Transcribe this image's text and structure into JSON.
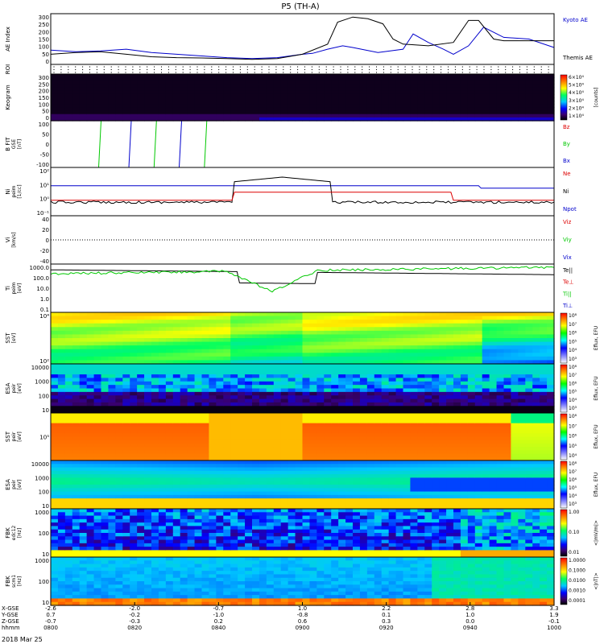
{
  "title": "P5 (TH-A)",
  "date_label": "2018 Mar 25",
  "colors": {
    "black": "#000000",
    "blue": "#0000cc",
    "red": "#dd0000",
    "green": "#00c800"
  },
  "chart_data": [
    {
      "id": "ae",
      "type": "line",
      "ylabel": "AE Index",
      "yticks": [
        "300",
        "250",
        "200",
        "150",
        "100",
        "50",
        "0"
      ],
      "ylim": [
        0,
        300
      ],
      "legend": [
        "Kyoto AE",
        "Themis AE"
      ],
      "legend_colors": [
        "#0000cc",
        "#000000"
      ],
      "series": [
        {
          "name": "Kyoto AE",
          "color": "#0000cc",
          "x": [
            0,
            5,
            10,
            15,
            20,
            25,
            30,
            35,
            40,
            45,
            50,
            52,
            55,
            58,
            60,
            65,
            70,
            72,
            75,
            78,
            80,
            83,
            86,
            90,
            95,
            100
          ],
          "y": [
            85,
            75,
            80,
            90,
            70,
            60,
            50,
            40,
            35,
            40,
            60,
            65,
            90,
            110,
            100,
            70,
            90,
            180,
            130,
            90,
            60,
            110,
            220,
            160,
            150,
            100
          ]
        },
        {
          "name": "Themis AE",
          "color": "#000000",
          "x": [
            0,
            5,
            10,
            15,
            20,
            25,
            30,
            35,
            40,
            45,
            50,
            55,
            57,
            60,
            63,
            66,
            68,
            70,
            75,
            80,
            83,
            85,
            88,
            90,
            95,
            100
          ],
          "y": [
            60,
            70,
            75,
            60,
            45,
            40,
            38,
            35,
            30,
            35,
            60,
            120,
            250,
            280,
            270,
            240,
            150,
            120,
            110,
            130,
            260,
            260,
            150,
            140,
            140,
            140
          ]
        }
      ]
    },
    {
      "id": "roi",
      "type": "dots",
      "ylabel": "ROI",
      "yticks": []
    },
    {
      "id": "keogram",
      "type": "heatmap",
      "ylabel": "Keogram",
      "yticks": [
        "300",
        "250",
        "200",
        "150",
        "100",
        "50",
        "0"
      ],
      "colorbar": [
        "6×10⁴",
        "5×10⁴",
        "4×10⁴",
        "3×10⁴",
        "2×10⁴",
        "1×10⁴"
      ],
      "colorbar_label": "[counts]"
    },
    {
      "id": "bfit",
      "type": "line",
      "ylabel": "B FIT",
      "ylabel2": "GSE",
      "ylabel3": "[nT]",
      "yticks": [
        "100",
        "50",
        "0",
        "-50",
        "-100"
      ],
      "legend": [
        "Bz",
        "By",
        "Bx"
      ],
      "legend_colors": [
        "#dd0000",
        "#00c800",
        "#0000cc"
      ]
    },
    {
      "id": "ni",
      "type": "line",
      "ylabel": "Ni",
      "ylabel2": "peim",
      "ylabel3": "[1/cc]",
      "yticks": [
        "10²",
        "10¹",
        "10⁰",
        "10⁻¹"
      ],
      "legend": [
        "Ne",
        "Ni",
        "Npot"
      ],
      "legend_colors": [
        "#dd0000",
        "#000000",
        "#0000cc"
      ]
    },
    {
      "id": "vi",
      "type": "line",
      "ylabel": "Vi",
      "ylabel2": "[km/s]",
      "yticks": [
        "40",
        "20",
        "0",
        "-20",
        "-40"
      ],
      "legend": [
        "Viz",
        "Viy",
        "Vix"
      ],
      "legend_colors": [
        "#dd0000",
        "#00c800",
        "#0000cc"
      ]
    },
    {
      "id": "ti",
      "type": "line",
      "ylabel": "Ti",
      "ylabel2": "peim",
      "ylabel3": "[eV]",
      "yticks": [
        "1000.0",
        "100.0",
        "10.0",
        "1.0",
        "0.1"
      ],
      "legend": [
        "Te||",
        "Te⊥",
        "Ti||",
        "Ti⊥"
      ],
      "legend_colors": [
        "#000000",
        "#dd0000",
        "#00c800",
        "#0000cc"
      ]
    },
    {
      "id": "sst-e",
      "type": "heatmap",
      "ylabel": "SST",
      "ylabel2": "[eV]",
      "yticks": [
        "10⁴",
        " 10²"
      ],
      "colorbar": [
        "10⁸",
        "10⁷",
        "10⁶",
        "10⁵",
        "10⁴",
        "10³"
      ],
      "colorbar_label": "Eflux, EFU"
    },
    {
      "id": "esa-e",
      "type": "heatmap",
      "ylabel": "ESA",
      "ylabel2": "peir",
      "ylabel3": "[eV]",
      "yticks": [
        "10000",
        "1000",
        "100",
        "10"
      ],
      "colorbar": [
        "10⁸",
        "10⁷",
        "10⁶",
        "10⁵",
        "10⁴",
        "10³"
      ],
      "colorbar_label": "Eflux, EFU"
    },
    {
      "id": "sst-i",
      "type": "heatmap",
      "ylabel": "SST",
      "ylabel2": "peir",
      "ylabel3": "[eV]",
      "yticks": [
        "10⁵"
      ],
      "colorbar": [
        "10⁸",
        "10⁷",
        "10⁶",
        "10⁵",
        "10⁴"
      ],
      "colorbar_label": "Eflux, EFU"
    },
    {
      "id": "esa-i",
      "type": "heatmap",
      "ylabel": "ESA",
      "ylabel2": "peir",
      "ylabel3": "[eV]",
      "yticks": [
        "10000",
        "1000",
        "100",
        "10"
      ],
      "colorbar": [
        "10⁸",
        "10⁷",
        "10⁶",
        "10⁵",
        "10⁴",
        "10³"
      ],
      "colorbar_label": "Eflux, EFU"
    },
    {
      "id": "fbk1",
      "type": "heatmap",
      "ylabel": "FBK",
      "ylabel2": "edc12",
      "ylabel3": "[Hz]",
      "yticks": [
        "1000",
        "100",
        "10"
      ],
      "colorbar": [
        "1.00",
        "0.10",
        "0.01"
      ],
      "colorbar_label": "<|mV/m|>"
    },
    {
      "id": "fbk2",
      "type": "heatmap",
      "ylabel": "FBK",
      "ylabel2": "scm1",
      "ylabel3": "[Hz]",
      "yticks": [
        "1000",
        "100",
        "10"
      ],
      "colorbar": [
        "1.0000",
        "0.1000",
        "0.0100",
        "0.0010",
        "0.0001"
      ],
      "colorbar_label": "<|nT|>"
    }
  ],
  "xaxis": {
    "row_labels": [
      "X-GSE",
      "Y-GSE",
      "Z-GSE",
      "hhmm"
    ],
    "columns": [
      {
        "x": "-2.6",
        "y": "0.7",
        "z": "-0.7",
        "t": "0800"
      },
      {
        "x": "-2.0",
        "y": "-0.2",
        "z": "-0.3",
        "t": "0820"
      },
      {
        "x": "-0.7",
        "y": "-1.0",
        "z": "0.2",
        "t": "0840"
      },
      {
        "x": "1.0",
        "y": "-0.8",
        "z": "0.6",
        "t": "0900"
      },
      {
        "x": "2.2",
        "y": "0.1",
        "z": "0.3",
        "t": "0920"
      },
      {
        "x": "2.8",
        "y": "1.0",
        "z": "0.0",
        "t": "0940"
      },
      {
        "x": "3.3",
        "y": "1.9",
        "z": "-0.1",
        "t": "1000"
      }
    ]
  }
}
